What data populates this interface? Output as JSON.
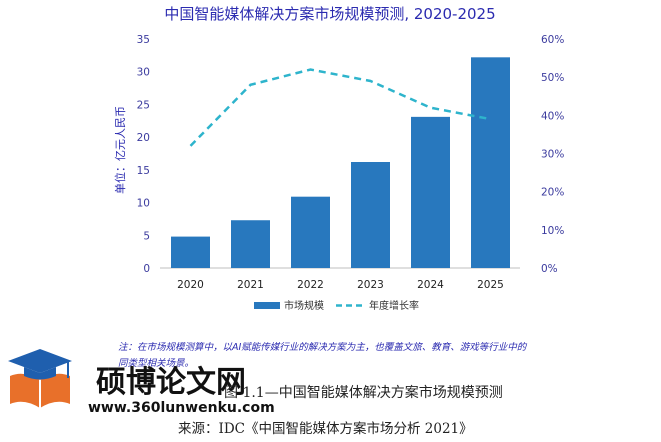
{
  "chart_data": {
    "type": "bar",
    "title": "中国智能媒体解决方案市场规模预测, 2020-2025",
    "ylabel": "单位：亿元人民币",
    "categories": [
      "2020",
      "2021",
      "2022",
      "2023",
      "2024",
      "2025"
    ],
    "series": [
      {
        "name": "市场规模",
        "type": "bar",
        "axis": "left",
        "color": "#2878be",
        "values": [
          4.8,
          7.3,
          10.9,
          16.2,
          23.1,
          32.2
        ]
      },
      {
        "name": "年度增长率",
        "type": "line",
        "style": "dashed",
        "axis": "right",
        "color": "#2eb4cc",
        "values": [
          0.32,
          0.48,
          0.52,
          0.49,
          0.42,
          0.39
        ]
      }
    ],
    "ylim": [
      0,
      35
    ],
    "yticks": [
      "0",
      "5",
      "10",
      "15",
      "20",
      "25",
      "30",
      "35"
    ],
    "y2lim": [
      0,
      0.6
    ],
    "y2ticks": [
      "0%",
      "10%",
      "20%",
      "30%",
      "40%",
      "50%",
      "60%"
    ],
    "grid": false,
    "legend": "bottom-center"
  },
  "note": {
    "lines": [
      "注：在市场规模测算中，以AI赋能传媒行业的解决方案为主，也覆盖文旅、教育、游戏等行业中的",
      "同类型相关场景。"
    ]
  },
  "caption": "图 1.1—中国智能媒体解决方案市场规模预测",
  "source": "来源：IDC《中国智能媒体方案市场分析 2021》",
  "watermark": {
    "name": "硕博论文网",
    "url": "www.360lunwenku.com",
    "icon": "graduation-cap-book-icon",
    "cap_color": "#1f5fae",
    "book_color": "#e8702a"
  }
}
